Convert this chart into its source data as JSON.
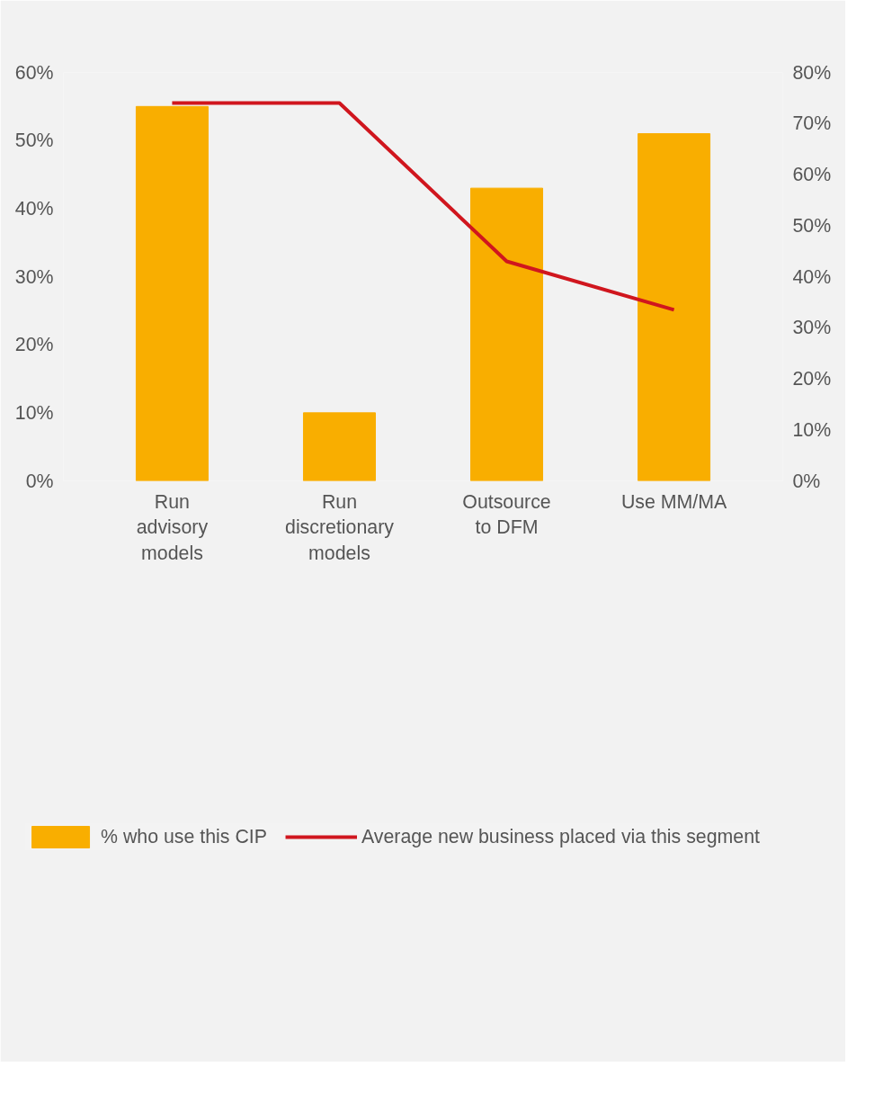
{
  "chart_data": {
    "type": "bar",
    "categories": [
      "Run\nadvisory\nmodels",
      "Run\ndiscretionary\nmodels",
      "Outsource\nto DFM",
      "Use MM/MA"
    ],
    "series": [
      {
        "name": "% who use this CIP",
        "color": "#f9ae00",
        "values": [
          55,
          10,
          43,
          51
        ]
      },
      {
        "name": "Average new business placed via this segment",
        "type": "line",
        "axis": "y2",
        "color": "#d0161e",
        "values": [
          74,
          74,
          43,
          33.5
        ]
      }
    ],
    "ylim": [
      0,
      60
    ],
    "yticks": [
      {
        "value": 0,
        "label": "0%"
      },
      {
        "value": 10,
        "label": "10%"
      },
      {
        "value": 20,
        "label": "20%"
      },
      {
        "value": 30,
        "label": "30%"
      },
      {
        "value": 40,
        "label": "40%"
      },
      {
        "value": 50,
        "label": "50%"
      },
      {
        "value": 60,
        "label": "60%"
      }
    ],
    "y2lim": [
      0,
      80
    ],
    "y2ticks": [
      {
        "value": 0,
        "label": "0%"
      },
      {
        "value": 10,
        "label": "10%"
      },
      {
        "value": 20,
        "label": "20%"
      },
      {
        "value": 30,
        "label": "30%"
      },
      {
        "value": 40,
        "label": "40%"
      },
      {
        "value": 50,
        "label": "50%"
      },
      {
        "value": 60,
        "label": "60%"
      },
      {
        "value": 70,
        "label": "70%"
      },
      {
        "value": 80,
        "label": "80%"
      }
    ],
    "grid": false,
    "legend": "bottom",
    "marker": "none",
    "line_style": "solid"
  }
}
